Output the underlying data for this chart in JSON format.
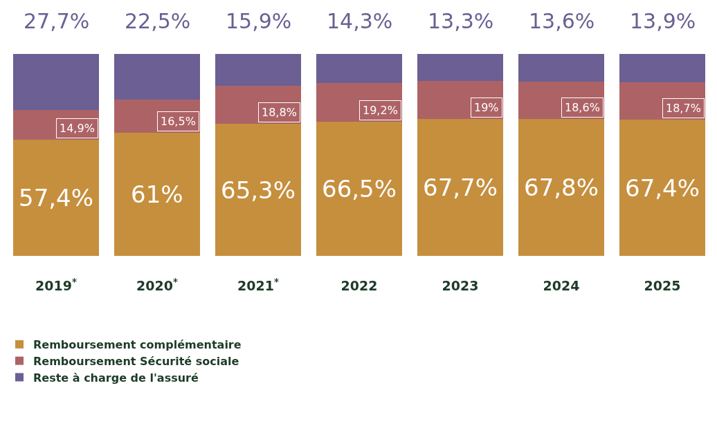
{
  "chart_data": {
    "type": "bar",
    "stacked": true,
    "categories": [
      "2019$^{*}$",
      "2020$^{*}$",
      "2021$^{*}$",
      "2022",
      "2023",
      "2024",
      "2025"
    ],
    "ylim": [
      0,
      100
    ],
    "legend": "bottom left",
    "series": [
      {
        "name": "Remboursement complémentaire",
        "color": "#c58f3e",
        "values": [
          57.4,
          61,
          65.3,
          66.5,
          67.7,
          67.8,
          67.4
        ],
        "value_labels": [
          "57,4%",
          "61%",
          "65,3%",
          "66,5%",
          "67,7%",
          "67,8%",
          "67,4%"
        ]
      },
      {
        "name": "Remboursement Sécurité sociale",
        "color": "#ad6366",
        "values": [
          14.9,
          16.5,
          18.8,
          19.2,
          19,
          18.6,
          18.7
        ],
        "value_labels": [
          "14,9%",
          "16,5%",
          "18,8%",
          "19,2%",
          "19%",
          "18,6%",
          "18,7%"
        ]
      },
      {
        "name": "Reste à charge de l'assuré",
        "color": "#6b5f93",
        "values": [
          27.7,
          22.5,
          15.9,
          14.3,
          13.3,
          13.6,
          13.9
        ],
        "value_labels": [
          "27,7%",
          "22,5%",
          "15,9%",
          "14,3%",
          "13,3%",
          "13,6%",
          "13,9%"
        ]
      }
    ]
  }
}
